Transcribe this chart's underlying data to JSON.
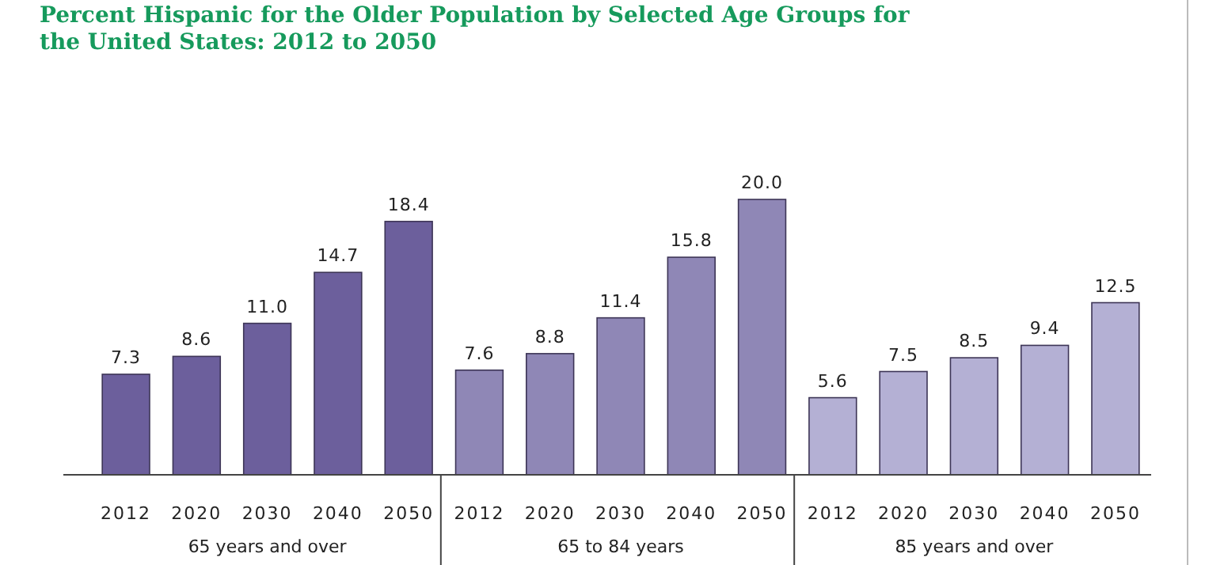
{
  "chart_data": {
    "type": "bar",
    "title": "Percent Hispanic for the Older Population by Selected Age Groups for the United States: 2012 to 2050",
    "categories": [
      "2012",
      "2020",
      "2030",
      "2040",
      "2050",
      "2012",
      "2020",
      "2030",
      "2040",
      "2050",
      "2012",
      "2020",
      "2030",
      "2040",
      "2050"
    ],
    "values": [
      7.3,
      8.6,
      11.0,
      14.7,
      18.4,
      7.6,
      8.8,
      11.4,
      15.8,
      20.0,
      5.6,
      7.5,
      8.5,
      9.4,
      12.5
    ],
    "value_labels": [
      "7.3",
      "8.6",
      "11.0",
      "14.7",
      "18.4",
      "7.6",
      "8.8",
      "11.4",
      "15.8",
      "20.0",
      "5.6",
      "7.5",
      "8.5",
      "9.4",
      "12.5"
    ],
    "colors": [
      "#6c5f9c",
      "#6c5f9c",
      "#6c5f9c",
      "#6c5f9c",
      "#6c5f9c",
      "#8f87b6",
      "#8f87b6",
      "#8f87b6",
      "#8f87b6",
      "#8f87b6",
      "#b4b0d4",
      "#b4b0d4",
      "#b4b0d4",
      "#b4b0d4",
      "#b4b0d4"
    ],
    "annotations": [
      "65 years and over",
      "65 to 84 years",
      "85 years and over"
    ]
  }
}
